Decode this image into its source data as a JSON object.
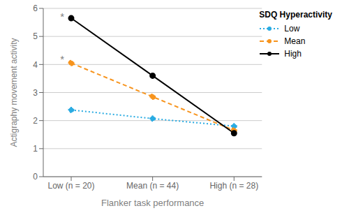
{
  "chart_data": {
    "type": "line",
    "categories": [
      "Low (n = 20)",
      "Mean (n = 44)",
      "High (n = 28)"
    ],
    "series": [
      {
        "name": "Low",
        "color": "#29ABE2",
        "line_style": "dotted",
        "marker": "circle",
        "values": [
          2.38,
          2.07,
          1.8
        ]
      },
      {
        "name": "Mean",
        "color": "#F7941D",
        "line_style": "dashed",
        "marker": "circle",
        "values": [
          4.05,
          2.85,
          1.65
        ]
      },
      {
        "name": "High",
        "color": "#000000",
        "line_style": "solid",
        "marker": "circle",
        "values": [
          5.65,
          3.6,
          1.55
        ]
      }
    ],
    "xlabel": "Flanker task performance",
    "ylabel": "Actigraphy movement activity",
    "ylim": [
      0,
      6
    ],
    "yticks": [
      0,
      1,
      2,
      3,
      4,
      5,
      6
    ],
    "grid": true,
    "legend": "upper right",
    "legend_title": "SDQ Hyperactivity",
    "annotations": [
      {
        "text": "*",
        "x": "Low (n = 20)",
        "y": 5.72
      },
      {
        "text": "*",
        "x": "Low (n = 20)",
        "y": 4.18
      }
    ]
  }
}
